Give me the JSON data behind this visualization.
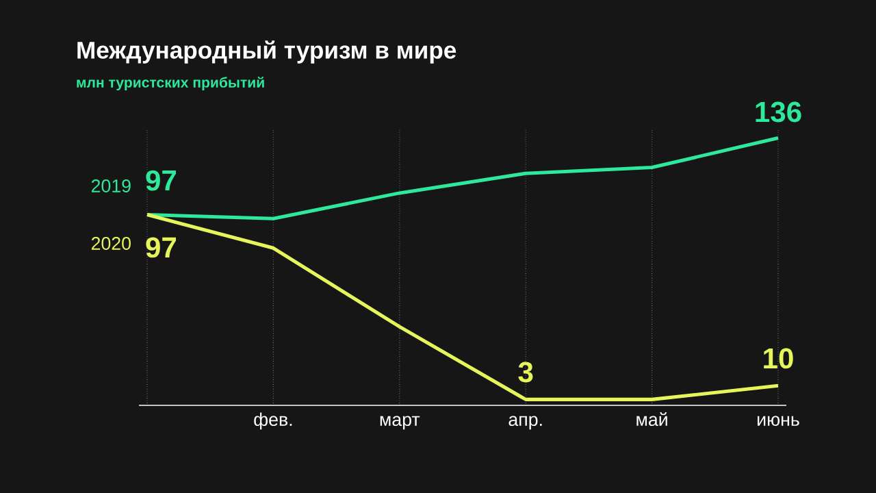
{
  "chart_data": {
    "type": "line",
    "title": "Международный туризм в мире",
    "subtitle": "млн туристских прибытий",
    "categories": [
      null,
      "фев.",
      "март",
      "апр.",
      "май",
      "июнь"
    ],
    "series": [
      {
        "name": "2019",
        "color": "#2ee89c",
        "values": [
          97,
          95,
          108,
          118,
          121,
          136
        ],
        "value_labels": [
          "97",
          null,
          null,
          null,
          null,
          "136"
        ]
      },
      {
        "name": "2020",
        "color": "#e6f55a",
        "values": [
          97,
          80,
          40,
          3,
          3,
          10
        ],
        "value_labels": [
          "97",
          null,
          null,
          "3",
          null,
          "10"
        ]
      }
    ],
    "ylim": [
      0,
      140
    ],
    "grid": "x",
    "tick_labels": "x",
    "marker": "none",
    "line_style": "solid"
  }
}
